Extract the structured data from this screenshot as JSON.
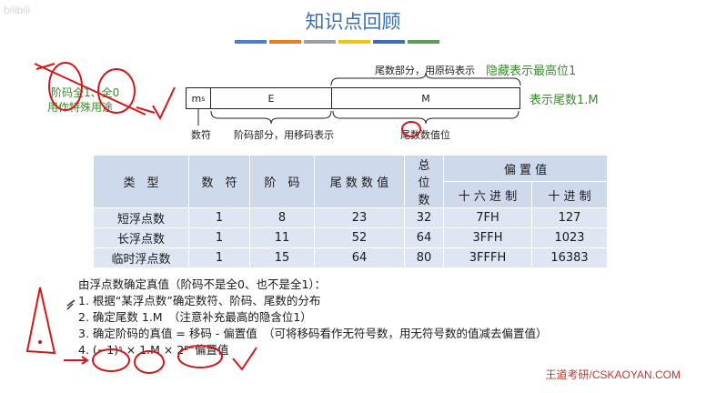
{
  "watermark": "bilibili",
  "title": "知识点回顾",
  "accent_colors": [
    "#4a80c4",
    "#e67e22",
    "#9aa0a6",
    "#f1c40f",
    "#3a6fb5",
    "#5aa050"
  ],
  "diagram": {
    "ms": "m",
    "ms_sub": "s",
    "e": "E",
    "m": "M",
    "sign_label": "数符",
    "exp_label": "阶码部分，用移码表示",
    "mant_top_label": "尾数部分，用原码表示",
    "mant_bottom_label": "尾数数值位",
    "note_hidden": "隐藏表示最高位1",
    "note_1m": "表示尾数1.M",
    "note_exp": "阶码全1、全0",
    "note_special": "用作特殊用途"
  },
  "table": {
    "headers": [
      "类　型",
      "数　符",
      "阶　码",
      "尾 数 数 值",
      "总 位 数",
      "偏 置 值"
    ],
    "bias_sub": [
      "十 六 进 制",
      "十 进 制"
    ],
    "rows": [
      [
        "短浮点数",
        "1",
        "8",
        "23",
        "32",
        "7FH",
        "127"
      ],
      [
        "长浮点数",
        "1",
        "11",
        "52",
        "64",
        "3FFH",
        "1023"
      ],
      [
        "临时浮点数",
        "1",
        "15",
        "64",
        "80",
        "3FFFH",
        "16383"
      ]
    ]
  },
  "notes": {
    "heading": "由浮点数确定真值（阶码不是全0、也不是全1）：",
    "items": [
      "1.  根据“某浮点数”确定数符、阶码、尾数的分布",
      "2.  确定尾数 1.M　（注意补充最高的隐含位1）",
      "3.  确定阶码的真值 = 移码 - 偏置值　（可将移码看作无符号数，用无符号数的值减去偏置值）",
      "4.  (−1)ˢ × 1.M × 2ᴱ⁻偏置值"
    ]
  },
  "brand": "王道考研/CSKAOYAN.COM"
}
